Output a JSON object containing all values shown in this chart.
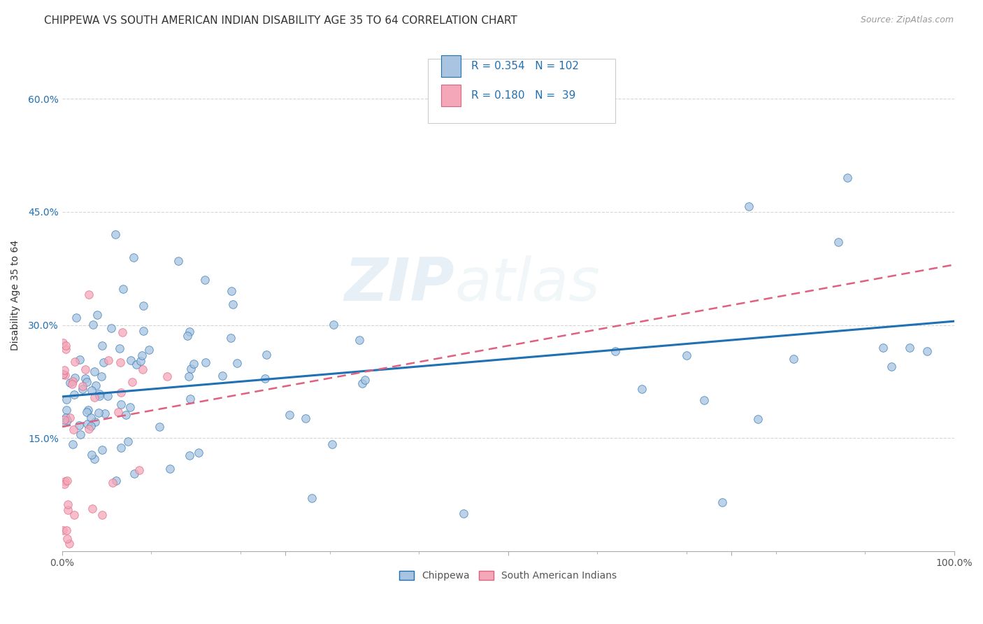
{
  "title": "CHIPPEWA VS SOUTH AMERICAN INDIAN DISABILITY AGE 35 TO 64 CORRELATION CHART",
  "source": "Source: ZipAtlas.com",
  "ylabel": "Disability Age 35 to 64",
  "xlim": [
    0,
    1.0
  ],
  "ylim": [
    0,
    0.68
  ],
  "chippewa_color": "#a8c4e0",
  "south_american_color": "#f4a7b9",
  "trendline_chippewa_color": "#2070b4",
  "trendline_south_american_color": "#e06080",
  "background_color": "#ffffff",
  "grid_color": "#cccccc",
  "legend_R1": "0.354",
  "legend_N1": "102",
  "legend_R2": "0.180",
  "legend_N2": "39",
  "watermark_zip": "ZIP",
  "watermark_atlas": "atlas",
  "title_fontsize": 11,
  "axis_label_fontsize": 10,
  "tick_fontsize": 10,
  "chippewa_trend_x0": 0.0,
  "chippewa_trend_x1": 1.0,
  "chippewa_trend_y0": 0.205,
  "chippewa_trend_y1": 0.305,
  "sa_trend_x0": 0.0,
  "sa_trend_x1": 1.0,
  "sa_trend_y0": 0.165,
  "sa_trend_y1": 0.38
}
